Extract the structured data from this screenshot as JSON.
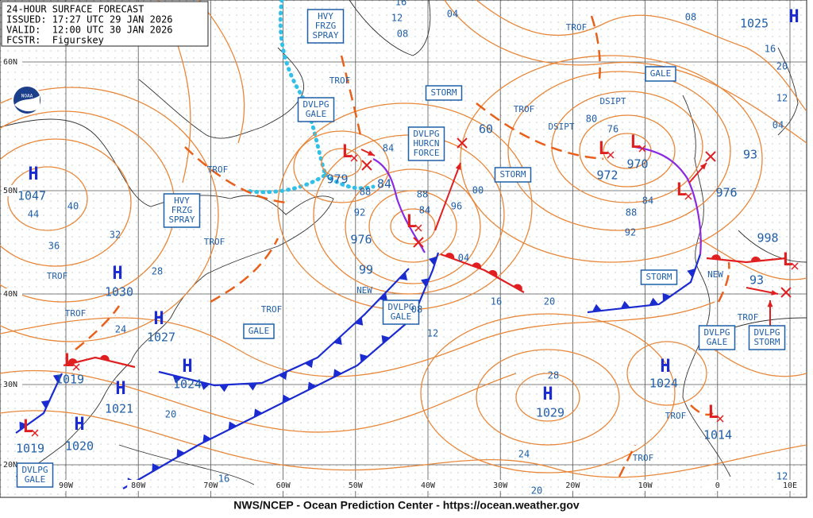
{
  "header": {
    "title": "24-HOUR SURFACE FORECAST",
    "issued": "ISSUED: 17:27 UTC 29 JAN 2026",
    "valid": "VALID:  12:00 UTC 30 JAN 2026",
    "forecaster": "FCSTR:  Figurskey"
  },
  "logo": "NOAA",
  "footer": "NWS/NCEP - Ocean Prediction Center - https://ocean.weather.gov",
  "latitude_labels": [
    "60N",
    "50N",
    "40N",
    "30N",
    "20N"
  ],
  "longitude_labels": [
    "90W",
    "80W",
    "70W",
    "60W",
    "50W",
    "40W",
    "30W",
    "20W",
    "10W",
    "0",
    "10E"
  ],
  "highs": [
    {
      "symbol": "H",
      "pressure": 1047
    },
    {
      "symbol": "H",
      "pressure": 1030
    },
    {
      "symbol": "H",
      "pressure": 1027
    },
    {
      "symbol": "H",
      "pressure": 1024
    },
    {
      "symbol": "H",
      "pressure": 1021
    },
    {
      "symbol": "H",
      "pressure": 1020
    },
    {
      "symbol": "H",
      "pressure": 1029
    },
    {
      "symbol": "H",
      "pressure": 1024
    },
    {
      "symbol": "H",
      "pressure": 1025
    }
  ],
  "lows": [
    {
      "symbol": "L",
      "pressure": 979
    },
    {
      "symbol": "L",
      "pressure": 976
    },
    {
      "symbol": "L",
      "pressure": 972
    },
    {
      "symbol": "L",
      "pressure": 970
    },
    {
      "symbol": "L",
      "pressure": 976
    },
    {
      "symbol": "L",
      "pressure": 998
    },
    {
      "symbol": "L",
      "pressure": 1019
    },
    {
      "symbol": "L",
      "pressure": 1019
    },
    {
      "symbol": "L",
      "pressure": 1014
    }
  ],
  "forecast_positions": [
    {
      "pressure": 60
    },
    {
      "pressure": 84
    },
    {
      "pressure": 99
    },
    {
      "pressure": 93
    },
    {
      "pressure": 93
    }
  ],
  "warning_boxes": [
    {
      "lines": [
        "HVY",
        "FRZG",
        "SPRAY"
      ]
    },
    {
      "lines": [
        "DVLPG",
        "GALE"
      ]
    },
    {
      "lines": [
        "STORM"
      ]
    },
    {
      "lines": [
        "DVLPG",
        "HURCN",
        "FORCE"
      ]
    },
    {
      "lines": [
        "STORM"
      ]
    },
    {
      "lines": [
        "GALE"
      ]
    },
    {
      "lines": [
        "HVY",
        "FRZG",
        "SPRAY"
      ]
    },
    {
      "lines": [
        "GALE"
      ]
    },
    {
      "lines": [
        "DVLPG",
        "GALE"
      ]
    },
    {
      "lines": [
        "STORM"
      ]
    },
    {
      "lines": [
        "DVLPG",
        "GALE"
      ]
    },
    {
      "lines": [
        "DVLPG",
        "STORM"
      ]
    },
    {
      "lines": [
        "DVLPG",
        "GALE"
      ]
    }
  ],
  "feature_labels": [
    "TROF",
    "TROF",
    "TROF",
    "TROF",
    "TROF",
    "TROF",
    "TROF",
    "TROF",
    "TROF",
    "TROF",
    "TROF",
    "DSIPT",
    "DSIPT",
    "NEW",
    "NEW"
  ],
  "isobar_labels": [
    "16",
    "04",
    "12",
    "08",
    "08",
    "16",
    "20",
    "12",
    "04",
    "80",
    "76",
    "84",
    "88",
    "92",
    "88",
    "84",
    "96",
    "00",
    "04",
    "16",
    "20",
    "08",
    "12",
    "88",
    "92",
    "84",
    "44",
    "40",
    "36",
    "32",
    "28",
    "24",
    "20",
    "16",
    "28",
    "24",
    "20",
    "12"
  ]
}
